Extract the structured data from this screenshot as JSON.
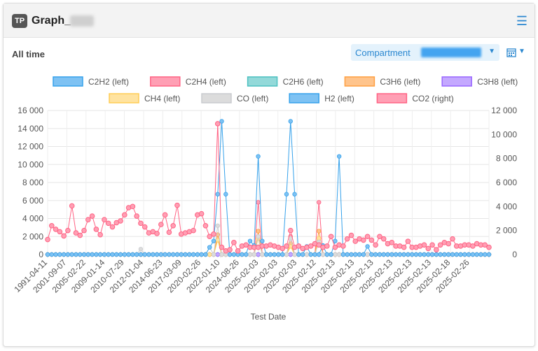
{
  "header": {
    "badge": "TP",
    "title": "Graph_"
  },
  "toolbar": {
    "range_label": "All time",
    "compartment_label": "Compartment"
  },
  "colors": {
    "accent": "#2a87d0",
    "header_bg": "#f3f3f3"
  },
  "chart_data": {
    "type": "line",
    "xlabel": "Test Date",
    "ylabel_left": "",
    "ylabel_right": "",
    "y_left": {
      "min": 0,
      "max": 16000,
      "ticks": [
        "16 000",
        "14 000",
        "12 000",
        "10 000",
        "8 000",
        "6 000",
        "4 000",
        "2 000",
        "0"
      ]
    },
    "y_right": {
      "min": 0,
      "max": 12000,
      "ticks": [
        "12 000",
        "10 000",
        "8 000",
        "6 000",
        "4 000",
        "2 000",
        "0"
      ]
    },
    "x_tick_labels": [
      "1991-04-11",
      "2001-09-07",
      "2005-02-22",
      "2009-01-14",
      "2010-07-29",
      "2012-01-04",
      "2014-06-23",
      "2017-03-09",
      "2020-02-26",
      "2022-01-10",
      "2024-08-26",
      "2025-02-03",
      "2025-02-03",
      "2025-02-03",
      "2025-02-12",
      "2025-02-13",
      "2025-02-13",
      "2025-02-13",
      "2025-02-13",
      "2025-02-13",
      "2025-02-13",
      "2025-02-18",
      "2025-02-26"
    ],
    "legend_position": "top",
    "grid": true,
    "series": [
      {
        "name": "C2H2 (left)",
        "axis": "left",
        "color": "#36a2eb",
        "fill": "#7ec2f3",
        "values": [
          0
        ],
        "spikes": []
      },
      {
        "name": "C2H4 (left)",
        "axis": "left",
        "color": "#ff6384",
        "fill": "#ff9fb4",
        "values": [
          0
        ],
        "spikes": [
          [
            42,
            2200
          ],
          [
            52,
            5800
          ],
          [
            60,
            2000
          ],
          [
            67,
            5800
          ]
        ]
      },
      {
        "name": "C2H6 (left)",
        "axis": "left",
        "color": "#4bc0c0",
        "fill": "#93d9d9",
        "values": [
          0
        ],
        "spikes": []
      },
      {
        "name": "C3H6 (left)",
        "axis": "left",
        "color": "#ff9f40",
        "fill": "#ffc48c",
        "values": [
          0
        ],
        "spikes": [
          [
            42,
            2200
          ],
          [
            52,
            2600
          ],
          [
            60,
            1200
          ],
          [
            67,
            2600
          ]
        ]
      },
      {
        "name": "C3H8 (left)",
        "axis": "left",
        "color": "#9966ff",
        "fill": "#c4a8ff",
        "values": [
          0
        ],
        "spikes": []
      },
      {
        "name": "CH4 (left)",
        "axis": "left",
        "color": "#ffcd56",
        "fill": "#ffe3a0",
        "values": [
          0
        ],
        "spikes": [
          [
            42,
            1600
          ],
          [
            52,
            1800
          ],
          [
            60,
            900
          ],
          [
            67,
            1800
          ]
        ]
      },
      {
        "name": "CO (left)",
        "axis": "left",
        "color": "#c9cbcf",
        "fill": "#dcdcdc",
        "values": [
          0
        ],
        "spikes": [
          [
            23,
            600
          ],
          [
            40,
            800
          ],
          [
            42,
            3200
          ],
          [
            52,
            2000
          ],
          [
            60,
            1800
          ],
          [
            67,
            1400
          ]
        ]
      },
      {
        "name": "H2 (left)",
        "axis": "left",
        "color": "#36a2eb",
        "fill": "#7ec2f3",
        "values": [
          0
        ],
        "spikes": [
          [
            40,
            800
          ],
          [
            41,
            1500
          ],
          [
            42,
            6700
          ],
          [
            43,
            14800
          ],
          [
            44,
            6700
          ],
          [
            50,
            1500
          ],
          [
            51,
            1000
          ],
          [
            52,
            10900
          ],
          [
            53,
            1500
          ],
          [
            59,
            6700
          ],
          [
            60,
            14800
          ],
          [
            61,
            6700
          ],
          [
            64,
            900
          ],
          [
            68,
            1000
          ],
          [
            71,
            1500
          ],
          [
            72,
            10900
          ],
          [
            79,
            900
          ]
        ]
      },
      {
        "name": "CO2 (right)",
        "axis": "right",
        "color": "#ff6384",
        "fill": "#ff9fb4",
        "values": [
          1250,
          2400,
          2100,
          1900,
          1550,
          2000,
          4050,
          1800,
          1600,
          2000,
          2900,
          3200,
          2100,
          1650,
          2900,
          2600,
          2300,
          2650,
          2800,
          3300,
          3900,
          4000,
          3200,
          2600,
          2300,
          1800,
          1900,
          1750,
          2500,
          3300,
          1850,
          2400,
          4100,
          1700,
          1800,
          1900,
          2000,
          3300,
          3400,
          2400,
          1500,
          1700,
          10900,
          600,
          300,
          400,
          1000,
          300,
          700,
          800,
          600,
          600,
          600,
          700,
          700,
          800,
          700,
          600,
          500,
          700,
          2000,
          600,
          700,
          500,
          600,
          700,
          900,
          800,
          600,
          700,
          1500,
          600,
          800,
          700,
          1300,
          1600,
          1100,
          1300,
          1200,
          1500,
          1200,
          800,
          1500,
          1300,
          900,
          1000,
          700,
          700,
          600,
          1100,
          600,
          600,
          700,
          800,
          500,
          800,
          400,
          800,
          1000,
          900,
          1300,
          700,
          700,
          800,
          800,
          700,
          900,
          800,
          800,
          600
        ]
      }
    ]
  }
}
